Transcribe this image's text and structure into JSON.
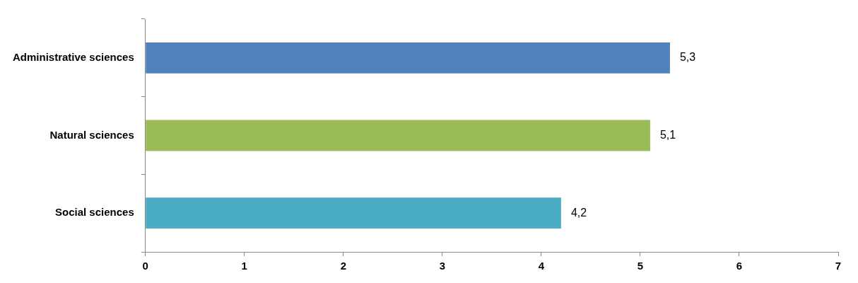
{
  "chart_data": {
    "type": "bar",
    "orientation": "horizontal",
    "categories": [
      "Administrative sciences",
      "Natural sciences",
      "Social sciences"
    ],
    "values": [
      5.3,
      5.1,
      4.2
    ],
    "colors": [
      "#4f81bd",
      "#9bbb59",
      "#4bacc6"
    ],
    "value_labels": [
      "5,3",
      "5,1",
      "4,2"
    ],
    "xlim": [
      0,
      7
    ],
    "xticks": [
      0,
      1,
      2,
      3,
      4,
      5,
      6,
      7
    ],
    "grid": false,
    "legend": false
  }
}
